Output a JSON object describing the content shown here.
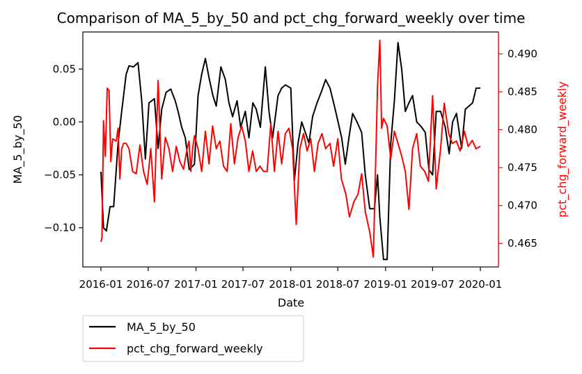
{
  "chart_data": {
    "type": "line",
    "title": "Comparison of MA_5_by_50 and pct_chg_forward_weekly over time",
    "xlabel": "Date",
    "x_range": [
      "2016-01-01",
      "2020-01-01"
    ],
    "x_ticks": [
      "2016-01",
      "2016-07",
      "2017-01",
      "2017-07",
      "2018-01",
      "2018-07",
      "2019-01",
      "2019-07",
      "2020-01"
    ],
    "x_tick_dates": [
      "2016-01-01",
      "2016-07-01",
      "2017-01-01",
      "2017-07-01",
      "2018-01-01",
      "2018-07-01",
      "2019-01-01",
      "2019-07-01",
      "2020-01-01"
    ],
    "y_left": {
      "label": "MA_5_by_50",
      "range": [
        -0.137,
        0.085
      ],
      "ticks": [
        0.05,
        0.0,
        -0.05,
        -0.1
      ],
      "tick_labels": [
        "0.05",
        "0.00",
        "−0.05",
        "−0.10"
      ],
      "color": "#000000"
    },
    "y_right": {
      "label": "pct_chg_forward_weekly",
      "range": [
        0.4619,
        0.4929
      ],
      "ticks": [
        0.465,
        0.47,
        0.475,
        0.48,
        0.485,
        0.49
      ],
      "tick_labels": [
        "0.465",
        "0.470",
        "0.475",
        "0.480",
        "0.485",
        "0.490"
      ],
      "color": "#ff0000"
    },
    "grid": false,
    "legend": {
      "placement": "below-left"
    },
    "series": [
      {
        "name": "MA_5_by_50",
        "axis": "left",
        "color": "#000000",
        "x": [
          "2016-01-01",
          "2016-01-11",
          "2016-01-22",
          "2016-02-05",
          "2016-02-19",
          "2016-03-07",
          "2016-03-21",
          "2016-04-07",
          "2016-04-18",
          "2016-05-05",
          "2016-05-23",
          "2016-06-06",
          "2016-06-20",
          "2016-07-04",
          "2016-07-25",
          "2016-08-08",
          "2016-08-22",
          "2016-09-08",
          "2016-09-26",
          "2016-10-13",
          "2016-10-24",
          "2016-11-07",
          "2016-11-21",
          "2016-12-06",
          "2016-12-26",
          "2017-01-09",
          "2017-01-23",
          "2017-02-06",
          "2017-02-20",
          "2017-03-07",
          "2017-03-20",
          "2017-04-07",
          "2017-04-24",
          "2017-05-08",
          "2017-05-22",
          "2017-06-08",
          "2017-06-22",
          "2017-07-10",
          "2017-07-24",
          "2017-08-08",
          "2017-08-21",
          "2017-09-06",
          "2017-09-25",
          "2017-10-09",
          "2017-10-23",
          "2017-11-13",
          "2017-11-27",
          "2017-12-11",
          "2018-01-01",
          "2018-01-15",
          "2018-01-29",
          "2018-02-12",
          "2018-02-26",
          "2018-03-12",
          "2018-03-26",
          "2018-04-12",
          "2018-05-01",
          "2018-05-15",
          "2018-06-01",
          "2018-06-18",
          "2018-07-02",
          "2018-07-16",
          "2018-07-30",
          "2018-08-13",
          "2018-08-27",
          "2018-09-13",
          "2018-10-01",
          "2018-10-15",
          "2018-11-01",
          "2018-11-19",
          "2018-12-01",
          "2018-12-10",
          "2018-12-24",
          "2019-01-07",
          "2019-01-21",
          "2019-02-04",
          "2019-02-18",
          "2019-03-04",
          "2019-03-18",
          "2019-04-01",
          "2019-04-15",
          "2019-05-01",
          "2019-05-20",
          "2019-06-03",
          "2019-06-17",
          "2019-07-01",
          "2019-07-15",
          "2019-08-01",
          "2019-08-19",
          "2019-09-03",
          "2019-09-16",
          "2019-10-01",
          "2019-10-21",
          "2019-11-04",
          "2019-11-18",
          "2019-12-02",
          "2019-12-16",
          "2020-01-01"
        ],
        "y": [
          -0.047,
          -0.1,
          -0.103,
          -0.08,
          -0.08,
          -0.02,
          0.01,
          0.045,
          0.053,
          0.052,
          0.056,
          0.02,
          -0.035,
          0.018,
          0.022,
          -0.025,
          0.012,
          0.028,
          0.031,
          0.02,
          0.01,
          -0.005,
          -0.015,
          -0.045,
          -0.04,
          0.025,
          0.045,
          0.06,
          0.042,
          0.025,
          0.015,
          0.052,
          0.04,
          0.018,
          0.005,
          0.02,
          -0.005,
          0.01,
          -0.015,
          0.018,
          0.012,
          -0.005,
          0.052,
          0.01,
          -0.015,
          0.025,
          0.032,
          0.035,
          0.032,
          -0.055,
          -0.02,
          0.0,
          -0.01,
          -0.02,
          0.005,
          0.018,
          0.03,
          0.04,
          0.032,
          0.015,
          0.0,
          -0.015,
          -0.04,
          -0.015,
          0.008,
          0.0,
          -0.01,
          -0.05,
          -0.082,
          -0.082,
          -0.05,
          -0.09,
          -0.13,
          -0.13,
          -0.02,
          0.02,
          0.075,
          0.05,
          0.01,
          0.018,
          0.025,
          0.0,
          -0.005,
          -0.01,
          -0.045,
          -0.05,
          0.01,
          0.01,
          -0.005,
          -0.03,
          0.0,
          0.008,
          -0.025,
          0.012,
          0.015,
          0.018,
          0.032,
          0.032
        ]
      },
      {
        "name": "pct_chg_forward_weekly",
        "axis": "right",
        "color": "#ff0000",
        "x": [
          "2016-01-01",
          "2016-01-05",
          "2016-01-11",
          "2016-01-18",
          "2016-01-25",
          "2016-02-01",
          "2016-02-08",
          "2016-02-15",
          "2016-02-29",
          "2016-03-07",
          "2016-03-14",
          "2016-03-21",
          "2016-03-28",
          "2016-04-07",
          "2016-04-18",
          "2016-05-02",
          "2016-05-16",
          "2016-05-30",
          "2016-06-13",
          "2016-06-27",
          "2016-07-11",
          "2016-07-25",
          "2016-08-08",
          "2016-08-22",
          "2016-09-05",
          "2016-09-19",
          "2016-10-03",
          "2016-10-17",
          "2016-10-31",
          "2016-11-14",
          "2016-11-28",
          "2016-12-05",
          "2016-12-12",
          "2016-12-19",
          "2016-12-26",
          "2017-01-09",
          "2017-01-23",
          "2017-02-06",
          "2017-02-20",
          "2017-03-06",
          "2017-03-20",
          "2017-04-03",
          "2017-04-17",
          "2017-05-01",
          "2017-05-15",
          "2017-05-29",
          "2017-06-12",
          "2017-06-26",
          "2017-07-10",
          "2017-07-24",
          "2017-08-07",
          "2017-08-21",
          "2017-09-04",
          "2017-09-18",
          "2017-10-02",
          "2017-10-16",
          "2017-10-30",
          "2017-11-13",
          "2017-11-27",
          "2017-12-11",
          "2017-12-25",
          "2018-01-08",
          "2018-01-22",
          "2018-02-05",
          "2018-02-19",
          "2018-03-05",
          "2018-03-19",
          "2018-04-02",
          "2018-04-16",
          "2018-05-01",
          "2018-05-15",
          "2018-06-01",
          "2018-06-15",
          "2018-07-01",
          "2018-07-15",
          "2018-08-01",
          "2018-08-15",
          "2018-09-01",
          "2018-09-17",
          "2018-10-01",
          "2018-10-15",
          "2018-11-01",
          "2018-11-15",
          "2018-12-01",
          "2018-12-10",
          "2018-12-17",
          "2018-12-24",
          "2019-01-07",
          "2019-01-21",
          "2019-02-04",
          "2019-02-18",
          "2019-03-04",
          "2019-03-18",
          "2019-04-01",
          "2019-04-15",
          "2019-05-01",
          "2019-05-15",
          "2019-06-01",
          "2019-06-15",
          "2019-07-01",
          "2019-07-15",
          "2019-08-01",
          "2019-08-15",
          "2019-09-01",
          "2019-09-15",
          "2019-10-01",
          "2019-10-15",
          "2019-11-01",
          "2019-11-15",
          "2019-12-01",
          "2019-12-15",
          "2020-01-01"
        ],
        "y": [
          0.4652,
          0.4658,
          0.4812,
          0.4765,
          0.4855,
          0.4852,
          0.4758,
          0.4788,
          0.4785,
          0.4802,
          0.4735,
          0.4775,
          0.4782,
          0.4782,
          0.4775,
          0.4745,
          0.4742,
          0.478,
          0.4745,
          0.4728,
          0.4775,
          0.4705,
          0.4865,
          0.4735,
          0.479,
          0.4775,
          0.4745,
          0.4778,
          0.4758,
          0.4748,
          0.4775,
          0.4785,
          0.4745,
          0.4775,
          0.4792,
          0.4775,
          0.4745,
          0.4798,
          0.4755,
          0.4805,
          0.4775,
          0.4785,
          0.4752,
          0.4745,
          0.4808,
          0.4755,
          0.479,
          0.4805,
          0.4785,
          0.4745,
          0.4772,
          0.4745,
          0.4752,
          0.4745,
          0.4745,
          0.4808,
          0.4745,
          0.4798,
          0.4755,
          0.4795,
          0.4802,
          0.4775,
          0.4675,
          0.4775,
          0.4795,
          0.4772,
          0.4788,
          0.4745,
          0.4782,
          0.4795,
          0.4775,
          0.4782,
          0.4752,
          0.4788,
          0.4735,
          0.4715,
          0.4685,
          0.4705,
          0.4715,
          0.4742,
          0.4692,
          0.4665,
          0.4632,
          0.4858,
          0.4918,
          0.4802,
          0.4815,
          0.4805,
          0.4762,
          0.4798,
          0.4782,
          0.4765,
          0.4745,
          0.4695,
          0.4775,
          0.4795,
          0.4752,
          0.4745,
          0.4732,
          0.4845,
          0.4722,
          0.4775,
          0.4835,
          0.4795,
          0.4782,
          0.4785,
          0.4772,
          0.4798,
          0.4778,
          0.4786,
          0.4775,
          0.4778
        ]
      }
    ]
  }
}
